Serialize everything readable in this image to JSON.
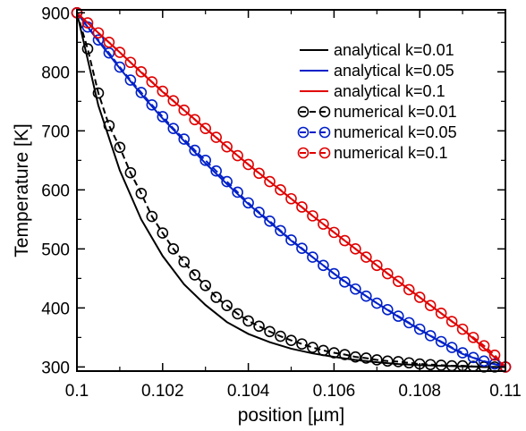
{
  "chart_data": {
    "type": "line",
    "xlabel": "position [µm]",
    "ylabel": "Temperature [K]",
    "xlim": [
      0.1,
      0.11
    ],
    "ylim": [
      293,
      905
    ],
    "x_ticks": [
      "0.1",
      "0.102",
      "0.104",
      "0.106",
      "0.108",
      "0.11"
    ],
    "y_ticks": [
      "300",
      "400",
      "500",
      "600",
      "700",
      "800",
      "900"
    ],
    "x_tick_values": [
      0.1,
      0.102,
      0.104,
      0.106,
      0.108,
      0.11
    ],
    "y_tick_values": [
      300,
      400,
      500,
      600,
      700,
      800,
      900
    ],
    "grid": false,
    "legend_position": "top-right",
    "colors": {
      "k001": "#000000",
      "k005": "#0020c8",
      "k01": "#e00000"
    },
    "series": [
      {
        "name": "analytical k=0.01",
        "style": "solid line",
        "color": "#000000",
        "x": [
          0.1,
          0.1005,
          0.101,
          0.1015,
          0.102,
          0.1025,
          0.103,
          0.1035,
          0.104,
          0.1045,
          0.105,
          0.1055,
          0.106,
          0.1065,
          0.107,
          0.1075,
          0.108,
          0.1085,
          0.109,
          0.1095,
          0.11
        ],
        "y": [
          900,
          743,
          633,
          550,
          488,
          440,
          405,
          376,
          356,
          342,
          331,
          323,
          317,
          312,
          308,
          305,
          303,
          302,
          301,
          300,
          300
        ]
      },
      {
        "name": "analytical k=0.05",
        "style": "solid line",
        "color": "#0020c8",
        "x": [
          0.1,
          0.1005,
          0.101,
          0.1015,
          0.102,
          0.1025,
          0.103,
          0.1035,
          0.104,
          0.1045,
          0.105,
          0.1055,
          0.106,
          0.1065,
          0.107,
          0.1075,
          0.108,
          0.1085,
          0.109,
          0.1095,
          0.11
        ],
        "y": [
          900,
          852,
          806,
          762,
          721,
          683,
          645,
          610,
          576,
          545,
          514,
          486,
          458,
          432,
          408,
          385,
          363,
          342,
          322,
          309,
          300
        ]
      },
      {
        "name": "analytical k=0.1",
        "style": "solid line",
        "color": "#e00000",
        "x": [
          0.1,
          0.1005,
          0.101,
          0.1015,
          0.102,
          0.1025,
          0.103,
          0.1035,
          0.104,
          0.1045,
          0.105,
          0.1055,
          0.106,
          0.1065,
          0.107,
          0.1075,
          0.108,
          0.1085,
          0.109,
          0.1095,
          0.11
        ],
        "y": [
          900,
          866,
          833,
          799,
          766,
          735,
          704,
          673,
          643,
          614,
          585,
          556,
          528,
          500,
          472,
          445,
          418,
          391,
          364,
          332,
          300
        ]
      },
      {
        "name": "numerical k=0.01",
        "style": "dashed line with open circles",
        "color": "#000000",
        "x": [
          0.1,
          0.10025,
          0.1005,
          0.10075,
          0.101,
          0.10125,
          0.1015,
          0.10175,
          0.102,
          0.10225,
          0.1025,
          0.10275,
          0.103,
          0.10325,
          0.1035,
          0.10375,
          0.104,
          0.10425,
          0.1045,
          0.10475,
          0.105,
          0.10525,
          0.1055,
          0.10575,
          0.106,
          0.10625,
          0.1065,
          0.10675,
          0.107,
          0.10725,
          0.1075,
          0.10775,
          0.108,
          0.10825,
          0.1085,
          0.10875,
          0.109,
          0.10925,
          0.1095,
          0.10975,
          0.11
        ],
        "y": [
          900,
          839,
          764,
          709,
          672,
          629,
          594,
          555,
          527,
          500,
          478,
          456,
          438,
          418,
          404,
          390,
          378,
          369,
          360,
          352,
          345,
          339,
          333,
          328,
          324,
          321,
          317,
          315,
          312,
          310,
          309,
          307,
          305,
          304,
          303,
          302,
          302,
          301,
          300,
          300,
          300
        ]
      },
      {
        "name": "numerical k=0.05",
        "style": "dashed line with open circles",
        "color": "#0020c8",
        "x": [
          0.1,
          0.10025,
          0.1005,
          0.10075,
          0.101,
          0.10125,
          0.1015,
          0.10175,
          0.102,
          0.10225,
          0.1025,
          0.10275,
          0.103,
          0.10325,
          0.1035,
          0.10375,
          0.104,
          0.10425,
          0.1045,
          0.10475,
          0.105,
          0.10525,
          0.1055,
          0.10575,
          0.106,
          0.10625,
          0.1065,
          0.10675,
          0.107,
          0.10725,
          0.1075,
          0.10775,
          0.108,
          0.10825,
          0.1085,
          0.10875,
          0.109,
          0.10925,
          0.1095,
          0.10975,
          0.11
        ],
        "y": [
          900,
          876,
          854,
          832,
          808,
          786,
          765,
          744,
          724,
          704,
          686,
          667,
          650,
          632,
          614,
          596,
          578,
          562,
          547,
          531,
          515,
          501,
          486,
          472,
          458,
          444,
          432,
          420,
          408,
          397,
          386,
          375,
          364,
          353,
          343,
          333,
          324,
          316,
          310,
          305,
          300
        ]
      },
      {
        "name": "numerical k=0.1",
        "style": "dashed line with open circles",
        "color": "#e00000",
        "x": [
          0.1,
          0.10025,
          0.1005,
          0.10075,
          0.101,
          0.10125,
          0.1015,
          0.10175,
          0.102,
          0.10225,
          0.1025,
          0.10275,
          0.103,
          0.10325,
          0.1035,
          0.10375,
          0.104,
          0.10425,
          0.1045,
          0.10475,
          0.105,
          0.10525,
          0.1055,
          0.10575,
          0.106,
          0.10625,
          0.1065,
          0.10675,
          0.107,
          0.10725,
          0.1075,
          0.10775,
          0.108,
          0.10825,
          0.1085,
          0.10875,
          0.109,
          0.10925,
          0.1095,
          0.10975,
          0.11
        ],
        "y": [
          900,
          883,
          866,
          850,
          833,
          816,
          800,
          783,
          767,
          751,
          735,
          719,
          704,
          689,
          673,
          658,
          643,
          628,
          614,
          600,
          585,
          571,
          556,
          542,
          528,
          514,
          500,
          486,
          472,
          458,
          445,
          431,
          418,
          404,
          391,
          377,
          364,
          350,
          336,
          320,
          300
        ]
      }
    ]
  }
}
